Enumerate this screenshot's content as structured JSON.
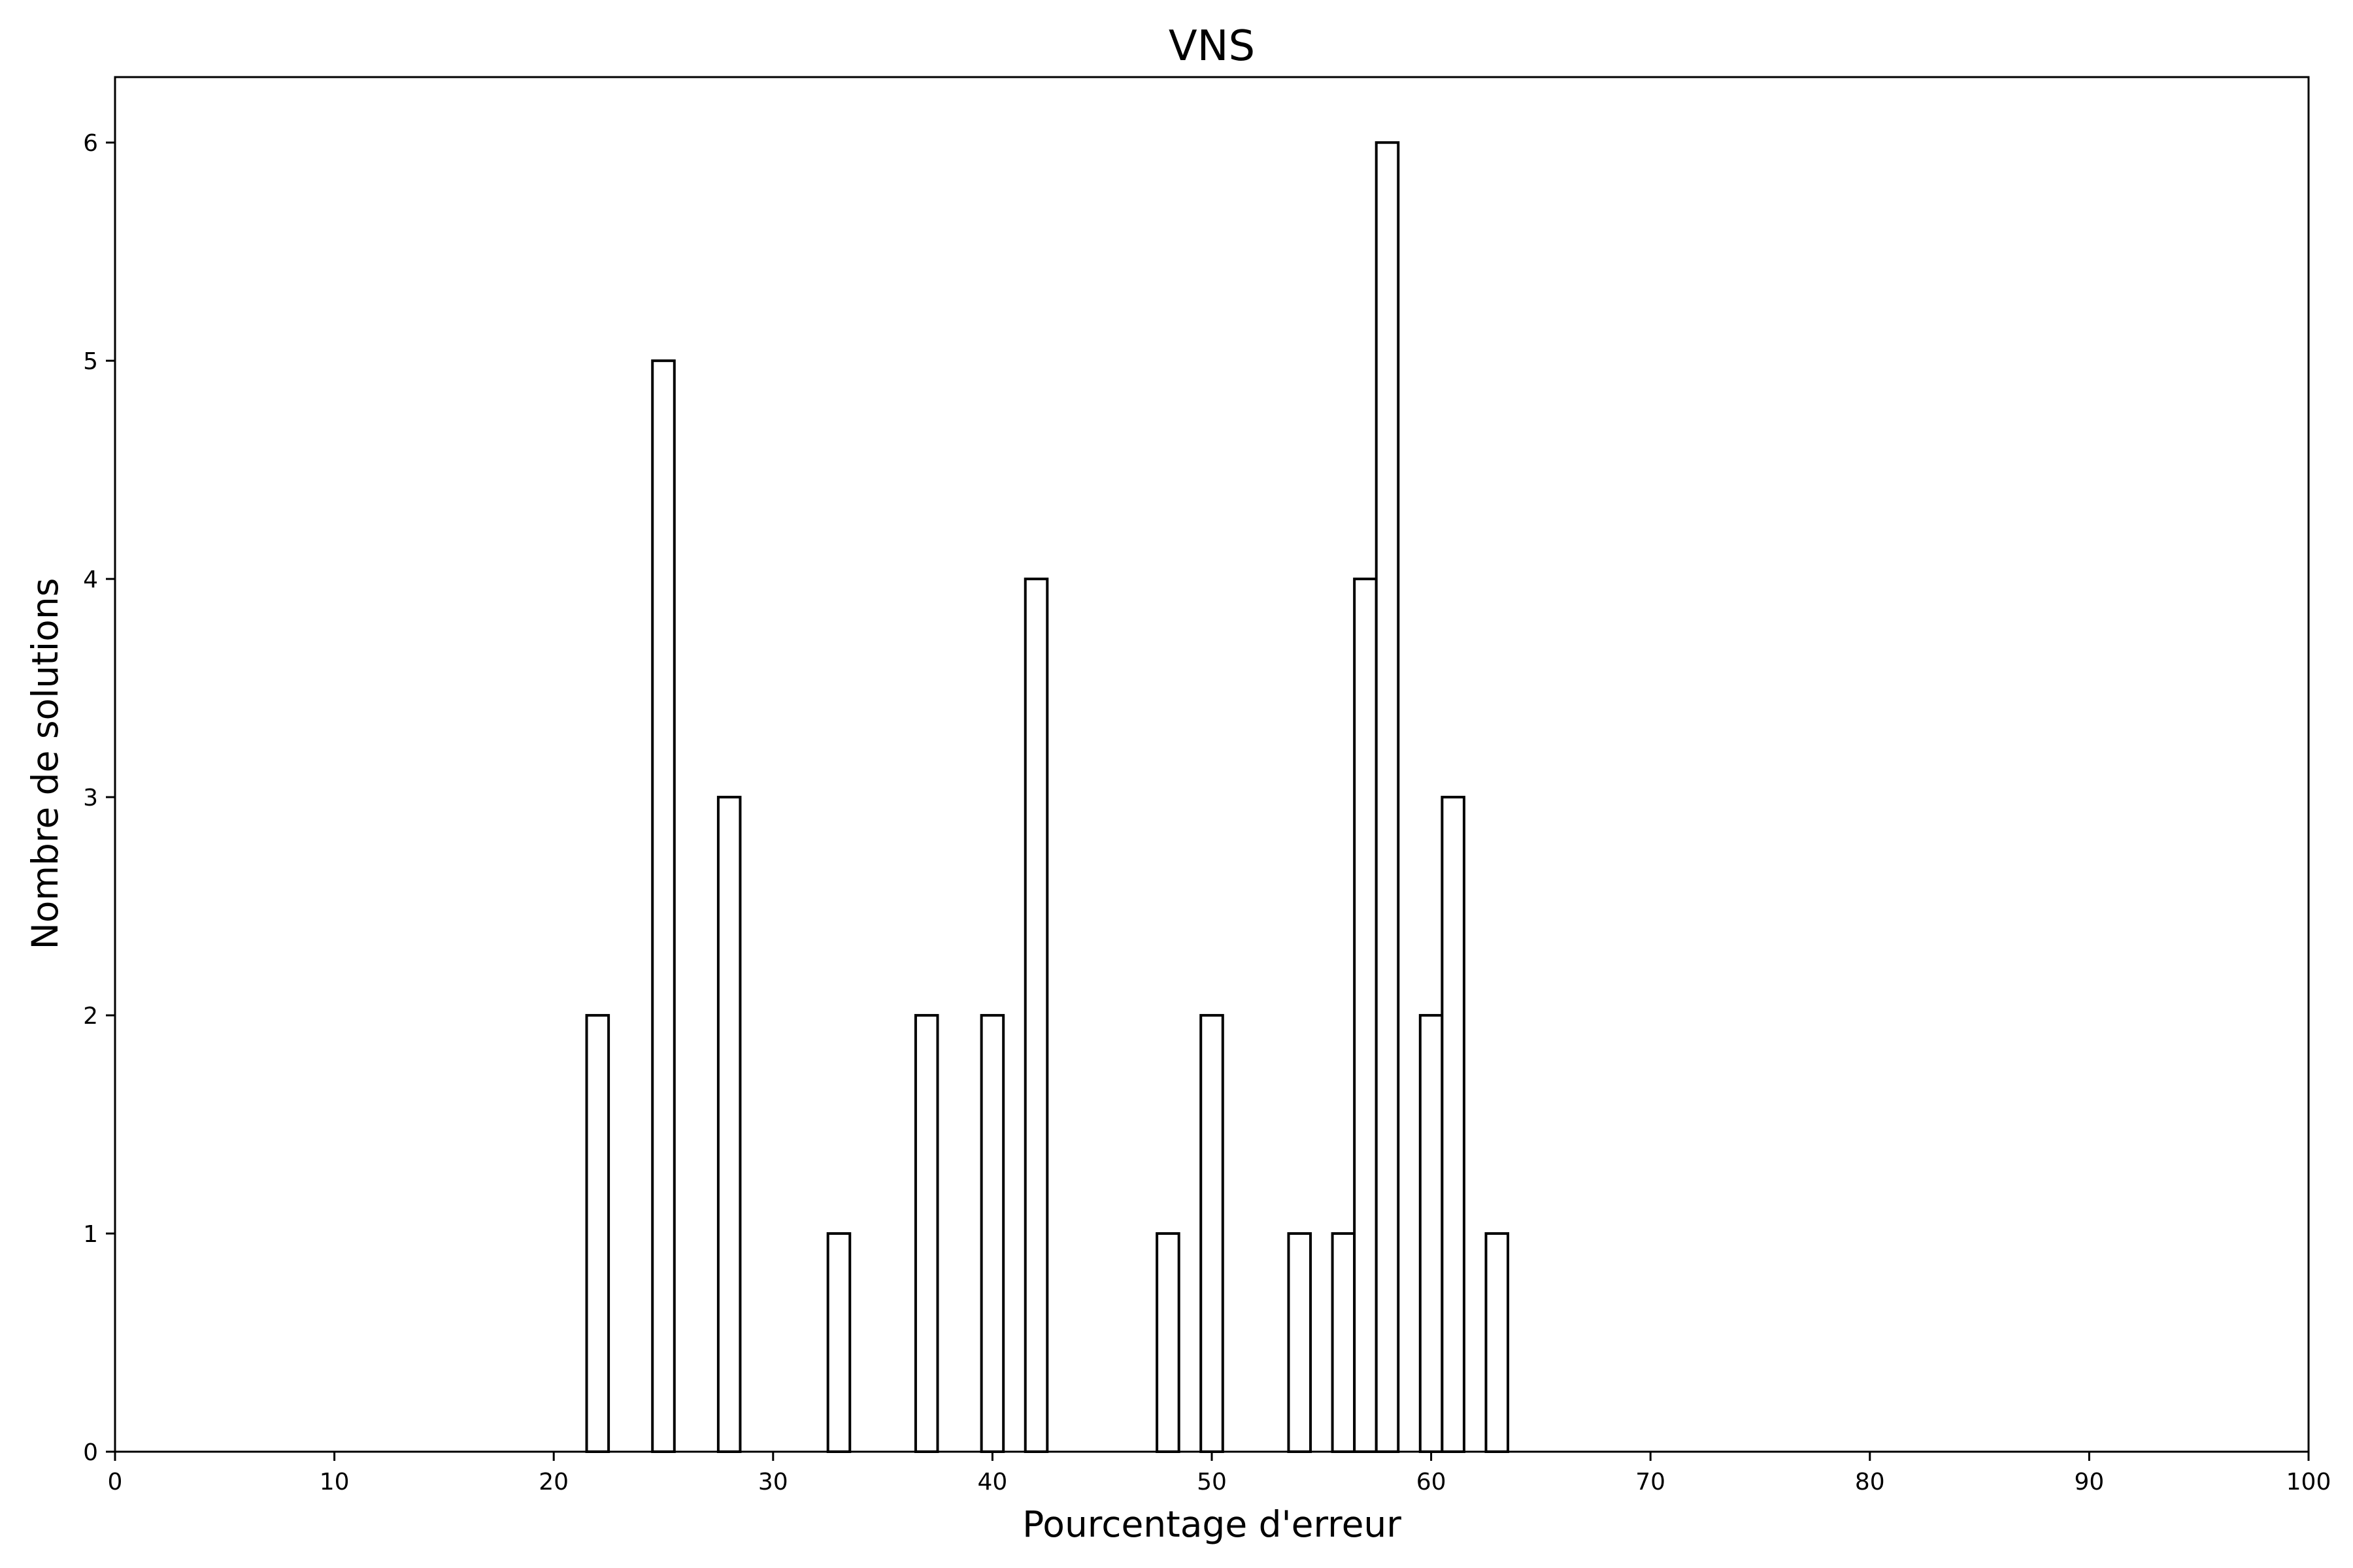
{
  "chart_data": {
    "type": "bar",
    "title": "VNS",
    "xlabel": "Pourcentage d'erreur",
    "ylabel": "Nombre de solutions",
    "xlim": [
      0,
      100
    ],
    "ylim": [
      0,
      6.3
    ],
    "x_ticks": [
      0,
      10,
      20,
      30,
      40,
      50,
      60,
      70,
      80,
      90,
      100
    ],
    "y_ticks": [
      0,
      1,
      2,
      3,
      4,
      5,
      6
    ],
    "grid": false,
    "bar_width": 1,
    "bar_fill": "#ffffff",
    "bar_edge": "#000000",
    "bars": [
      {
        "x": 22,
        "value": 2
      },
      {
        "x": 25,
        "value": 5
      },
      {
        "x": 28,
        "value": 3
      },
      {
        "x": 33,
        "value": 1
      },
      {
        "x": 37,
        "value": 2
      },
      {
        "x": 40,
        "value": 2
      },
      {
        "x": 42,
        "value": 4
      },
      {
        "x": 48,
        "value": 1
      },
      {
        "x": 50,
        "value": 2
      },
      {
        "x": 54,
        "value": 1
      },
      {
        "x": 56,
        "value": 1
      },
      {
        "x": 57,
        "value": 4
      },
      {
        "x": 58,
        "value": 6
      },
      {
        "x": 60,
        "value": 2
      },
      {
        "x": 61,
        "value": 3
      },
      {
        "x": 63,
        "value": 1
      }
    ]
  }
}
